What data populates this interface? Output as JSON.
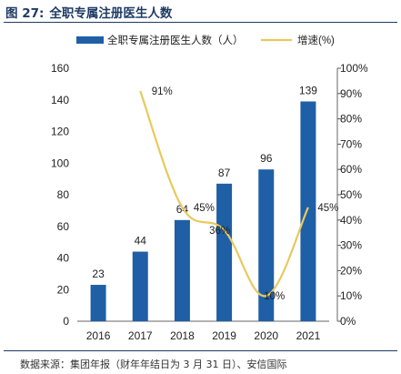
{
  "figure": {
    "number": "图 27:",
    "title": "全职专属注册医生人数",
    "source": "数据来源：集团年报（财年年结日为 3 月 31 日）、安信国际"
  },
  "colors": {
    "bar": "#1f5fa6",
    "line": "#e8c95e",
    "title": "#1f3b64"
  },
  "chart_data": {
    "type": "bar",
    "categories": [
      "2016",
      "2017",
      "2018",
      "2019",
      "2020",
      "2021"
    ],
    "series": [
      {
        "name": "全职专属注册医生人数（人）",
        "type": "bar",
        "axis": "left",
        "values": [
          23,
          44,
          64,
          87,
          96,
          139
        ]
      },
      {
        "name": "增速(%)",
        "type": "line",
        "axis": "right",
        "values": [
          null,
          91,
          45,
          36,
          10,
          45
        ],
        "labels": [
          "",
          "91%",
          "45%",
          "36%",
          "10%",
          "45%"
        ]
      }
    ],
    "y_left": {
      "min": 0,
      "max": 160,
      "ticks": [
        "0",
        "20",
        "40",
        "60",
        "80",
        "100",
        "120",
        "140",
        "160"
      ]
    },
    "y_right": {
      "min": 0,
      "max": 100,
      "ticks": [
        "0%",
        "10%",
        "20%",
        "30%",
        "40%",
        "50%",
        "60%",
        "70%",
        "80%",
        "90%",
        "100%"
      ]
    },
    "legend_position": "top",
    "grid": false
  }
}
